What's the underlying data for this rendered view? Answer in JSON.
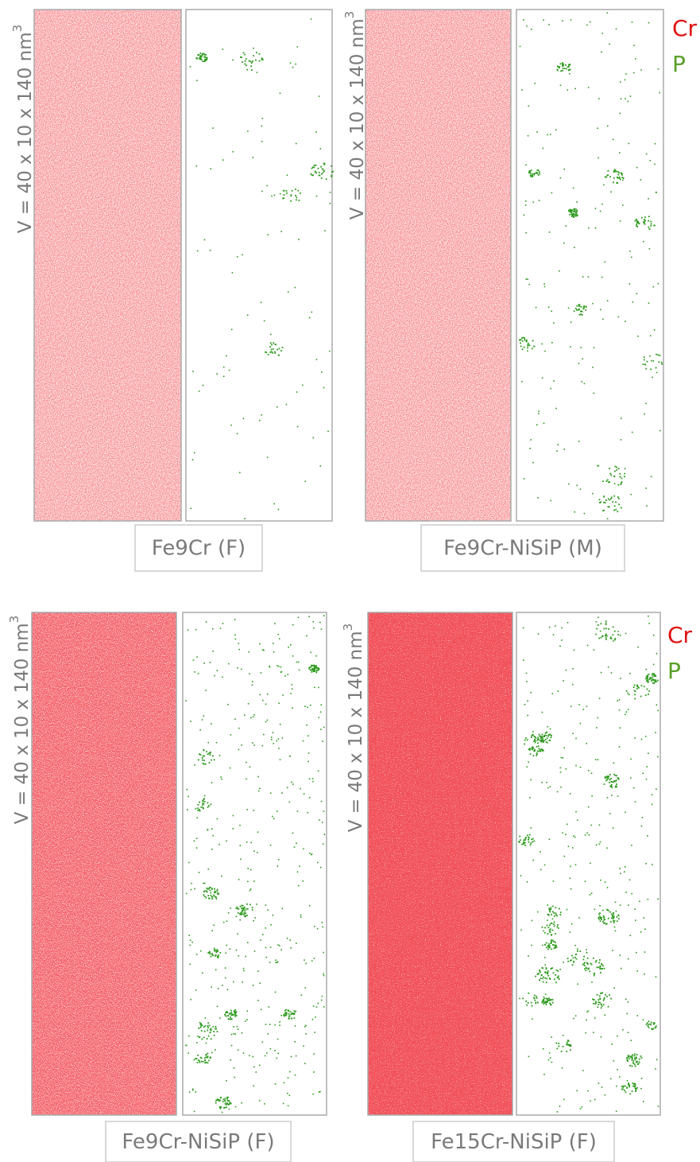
{
  "panels": [
    {
      "label": "Fe9Cr (F)",
      "volume": {
        "text": "V = 40 x 10 x 140 nm",
        "exponent": "3"
      }
    },
    {
      "label": "Fe9Cr-NiSiP (M)",
      "volume": {
        "text": "V = 40 x 10 x 140 nm",
        "exponent": "3"
      }
    },
    {
      "label": "Fe9Cr-NiSiP (F)",
      "volume": {
        "text": "V = 40 x 10 x 140 nm",
        "exponent": "3"
      }
    },
    {
      "label": "Fe15Cr-NiSiP (F)",
      "volume": {
        "text": "V = 40 x 10 x 140 nm",
        "exponent": "3"
      }
    }
  ],
  "legends": [
    [
      "Cr",
      "P"
    ],
    [
      "Cr",
      "P"
    ]
  ]
}
